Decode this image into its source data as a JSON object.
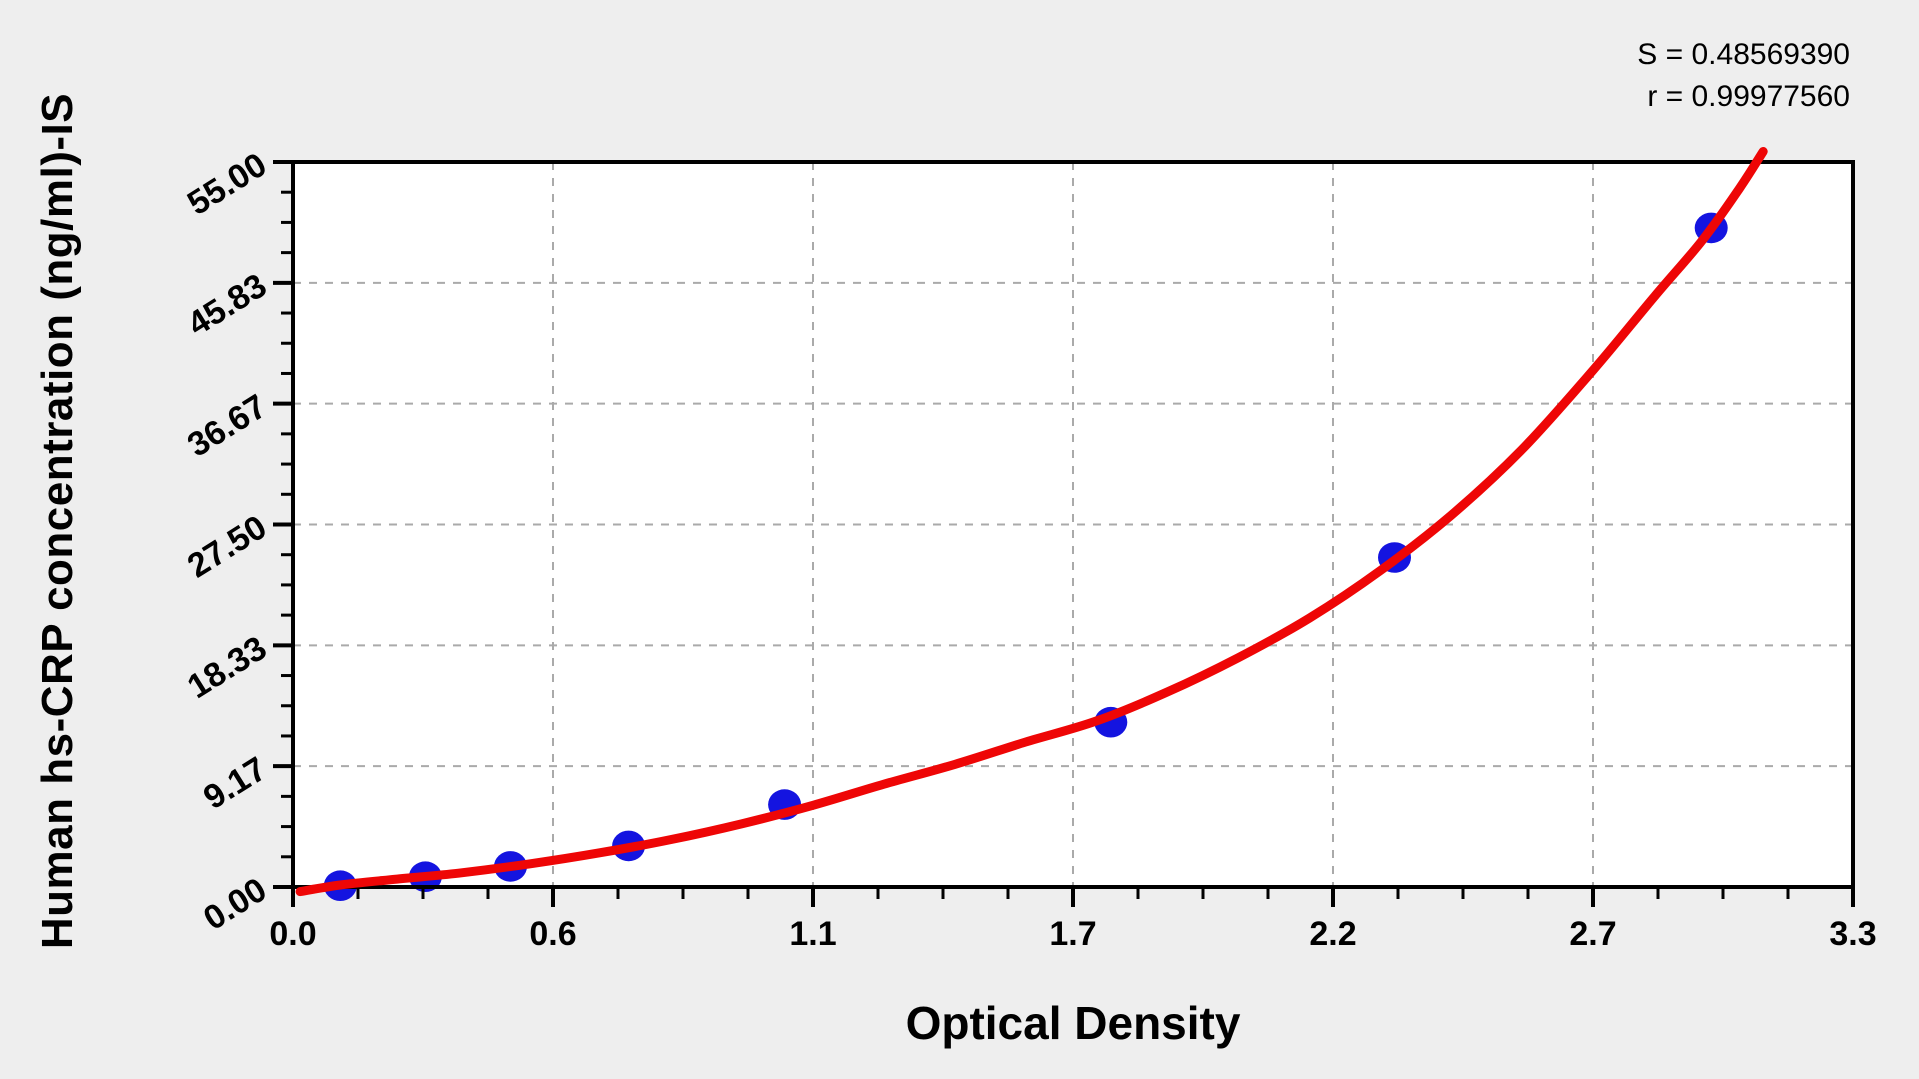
{
  "figure": {
    "background": "#eeeeee",
    "plot_background": "#ffffff",
    "stats": {
      "s_line": "S = 0.48569390",
      "r_line": "r = 0.99977560"
    }
  },
  "chart_data": {
    "type": "scatter",
    "title": "",
    "xlabel": "Optical Density",
    "ylabel": "Human hs-CRP concentration (ng/ml)-IS",
    "xlim": [
      0,
      3.3
    ],
    "ylim": [
      0,
      55
    ],
    "grid": "dashed-major",
    "grid_color": "#aaaaaa",
    "legend": null,
    "x_ticks": {
      "values": [
        0,
        0.55,
        1.1,
        1.65,
        2.2,
        2.75,
        3.3
      ],
      "labels": [
        "0.0",
        "0.6",
        "1.1",
        "1.7",
        "2.2",
        "2.7",
        "3.3"
      ],
      "minor_step": 0.1375
    },
    "y_ticks": {
      "values": [
        0,
        9.1667,
        18.3333,
        27.5,
        36.6667,
        45.8333,
        55
      ],
      "labels": [
        "0.00",
        "9.17",
        "18.33",
        "27.50",
        "36.67",
        "45.83",
        "55.00"
      ],
      "minor_step": 2.29167
    },
    "series": [
      {
        "name": "standard-points",
        "marker": "circle",
        "marker_color": "#1414e0",
        "x": [
          0.1,
          0.28,
          0.46,
          0.71,
          1.04,
          1.73,
          2.33,
          3.0
        ],
        "y": [
          0.1,
          0.78,
          1.56,
          3.12,
          6.25,
          12.5,
          25,
          50
        ]
      }
    ],
    "fit_curve": {
      "name": "regression-curve",
      "color": "#ee0606",
      "points": [
        [
          0.015,
          -0.35
        ],
        [
          0.1,
          0.15
        ],
        [
          0.22,
          0.6
        ],
        [
          0.35,
          1.05
        ],
        [
          0.5,
          1.75
        ],
        [
          0.65,
          2.6
        ],
        [
          0.8,
          3.6
        ],
        [
          0.95,
          4.8
        ],
        [
          1.1,
          6.2
        ],
        [
          1.25,
          7.8
        ],
        [
          1.4,
          9.3
        ],
        [
          1.55,
          11.0
        ],
        [
          1.7,
          12.6
        ],
        [
          1.85,
          14.8
        ],
        [
          2.0,
          17.4
        ],
        [
          2.15,
          20.4
        ],
        [
          2.3,
          24.0
        ],
        [
          2.45,
          28.2
        ],
        [
          2.6,
          33.2
        ],
        [
          2.75,
          39.2
        ],
        [
          2.88,
          44.8
        ],
        [
          2.98,
          49.0
        ],
        [
          3.06,
          53.0
        ],
        [
          3.11,
          55.8
        ]
      ]
    },
    "annotations": [
      "S = 0.48569390",
      "r = 0.99977560"
    ],
    "stats": {
      "S": "0.48569390",
      "r": "0.99977560"
    }
  }
}
